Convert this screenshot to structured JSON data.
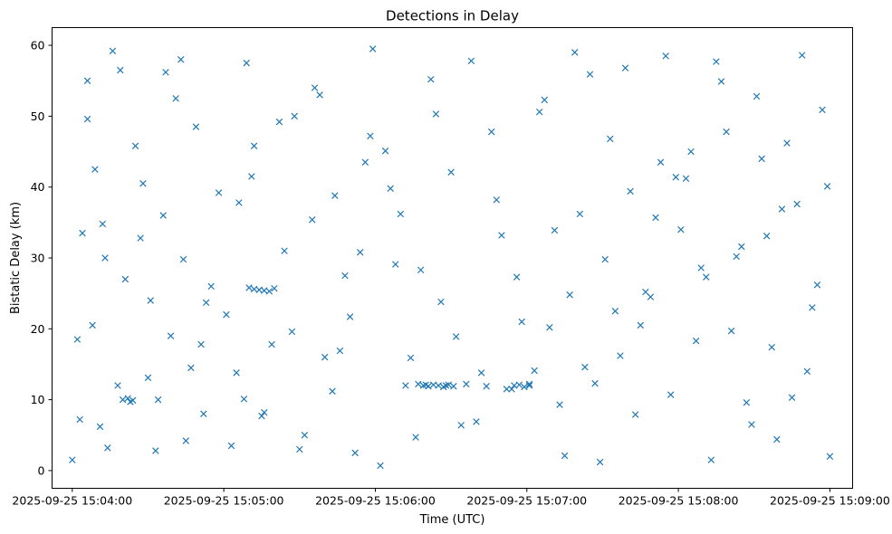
{
  "chart_data": {
    "type": "scatter",
    "title": "Detections in Delay",
    "xlabel": "Time (UTC)",
    "ylabel": "Bistatic Delay (km)",
    "marker": "x",
    "color": "#1f77b4",
    "grid": false,
    "legend": "none",
    "xlim": [
      "2025-09-25 15:03:52",
      "2025-09-25 15:09:09"
    ],
    "ylim": [
      -2.5,
      62.5
    ],
    "xticks": [
      "2025-09-25 15:04:00",
      "2025-09-25 15:05:00",
      "2025-09-25 15:06:00",
      "2025-09-25 15:07:00",
      "2025-09-25 15:08:00",
      "2025-09-25 15:09:00"
    ],
    "yticks": [
      0,
      10,
      20,
      30,
      40,
      50,
      60
    ],
    "series": [
      {
        "x": [
          "15:04:00",
          "15:04:02",
          "15:04:04",
          "15:04:06",
          "15:04:09",
          "15:04:11",
          "15:04:13",
          "15:04:16",
          "15:04:18",
          "15:04:21",
          "15:04:23",
          "15:04:25",
          "15:04:28",
          "15:04:31",
          "15:04:33",
          "15:04:36",
          "15:04:39",
          "15:04:41",
          "15:04:44",
          "15:04:47",
          "15:04:49",
          "15:04:52",
          "15:04:55",
          "15:04:58",
          "15:04:03",
          "15:04:08",
          "15:04:14",
          "15:04:19",
          "15:04:27",
          "15:04:34",
          "15:04:43",
          "15:04:51",
          "15:05:01",
          "15:05:05",
          "15:05:09",
          "15:05:12",
          "15:05:16",
          "15:05:20",
          "15:05:24",
          "15:05:28",
          "15:05:32",
          "15:05:36",
          "15:05:40",
          "15:05:44",
          "15:05:48",
          "15:05:52",
          "15:05:56",
          "15:05:59",
          "15:05:03",
          "15:05:11",
          "15:05:19",
          "15:05:27",
          "15:05:35",
          "15:05:43",
          "15:05:50",
          "15:05:58",
          "15:06:02",
          "15:06:06",
          "15:06:10",
          "15:06:14",
          "15:06:18",
          "15:06:22",
          "15:06:26",
          "15:06:30",
          "15:06:34",
          "15:06:38",
          "15:06:42",
          "15:06:46",
          "15:06:50",
          "15:06:54",
          "15:06:58",
          "15:06:12",
          "15:06:20",
          "15:06:28",
          "15:06:36",
          "15:06:44",
          "15:06:52",
          "15:07:01",
          "15:07:05",
          "15:07:09",
          "15:07:13",
          "15:07:17",
          "15:07:21",
          "15:07:25",
          "15:07:29",
          "15:07:33",
          "15:07:37",
          "15:07:41",
          "15:07:45",
          "15:07:49",
          "15:07:53",
          "15:07:57",
          "15:07:07",
          "15:07:15",
          "15:07:23",
          "15:07:31",
          "15:07:39",
          "15:07:47",
          "15:07:55",
          "15:08:01",
          "15:08:05",
          "15:08:09",
          "15:08:13",
          "15:08:17",
          "15:08:21",
          "15:08:25",
          "15:08:29",
          "15:08:33",
          "15:08:37",
          "15:08:41",
          "15:08:45",
          "15:08:49",
          "15:08:53",
          "15:08:57",
          "15:09:00",
          "15:08:03",
          "15:08:11",
          "15:08:19",
          "15:08:27",
          "15:08:35",
          "15:08:43",
          "15:08:51",
          "15:08:59",
          "15:05:10",
          "15:05:12",
          "15:05:14",
          "15:05:16",
          "15:05:18",
          "15:06:17",
          "15:06:19",
          "15:06:21",
          "15:06:23",
          "15:06:25",
          "15:06:27",
          "15:06:29",
          "15:06:31",
          "15:06:55",
          "15:06:57",
          "15:06:59",
          "15:07:01",
          "15:04:20",
          "15:04:22",
          "15:04:24",
          "15:05:08",
          "15:05:06",
          "15:05:15",
          "15:05:22",
          "15:05:30",
          "15:05:38",
          "15:05:46",
          "15:05:54",
          "15:06:04",
          "15:06:08",
          "15:06:16",
          "15:06:24",
          "15:06:32",
          "15:06:40",
          "15:06:48",
          "15:06:56",
          "15:07:03",
          "15:07:11",
          "15:07:19",
          "15:07:27",
          "15:07:35",
          "15:07:43",
          "15:07:51",
          "15:07:59",
          "15:08:07",
          "15:08:15",
          "15:08:23",
          "15:08:31",
          "15:08:39",
          "15:08:47",
          "15:08:55",
          "15:04:06",
          "15:04:12",
          "15:04:30",
          "15:04:37",
          "15:04:45",
          "15:04:53"
        ],
        "y": [
          1.5,
          18.5,
          33.5,
          55.0,
          42.5,
          6.2,
          30.0,
          59.2,
          12.0,
          27.0,
          9.7,
          45.8,
          40.5,
          24.0,
          2.8,
          36.0,
          19.0,
          52.5,
          29.8,
          14.5,
          48.5,
          8.0,
          26.0,
          39.2,
          7.2,
          20.5,
          3.2,
          56.5,
          32.8,
          10.0,
          58.0,
          17.8,
          22.0,
          13.8,
          57.5,
          45.8,
          8.2,
          25.7,
          31.0,
          50.0,
          5.0,
          54.0,
          16.0,
          38.8,
          27.5,
          2.5,
          43.5,
          59.5,
          3.5,
          41.5,
          17.8,
          19.6,
          35.4,
          11.2,
          21.7,
          47.2,
          0.7,
          39.8,
          36.2,
          15.9,
          28.3,
          55.2,
          23.8,
          42.1,
          6.4,
          57.8,
          13.8,
          47.8,
          33.2,
          11.5,
          21.0,
          12.0,
          12.1,
          12.0,
          12.2,
          11.9,
          11.5,
          12.0,
          50.6,
          20.2,
          9.3,
          24.8,
          36.2,
          55.9,
          1.2,
          46.8,
          16.2,
          39.4,
          20.5,
          24.5,
          43.5,
          10.7,
          52.3,
          2.1,
          14.6,
          29.8,
          56.8,
          25.2,
          58.5,
          34.0,
          45.0,
          28.6,
          1.5,
          54.9,
          19.7,
          31.6,
          6.5,
          44.0,
          17.4,
          36.9,
          10.3,
          58.6,
          23.0,
          50.9,
          2.0,
          41.2,
          27.3,
          47.8,
          9.6,
          33.1,
          46.2,
          14.0,
          40.1,
          25.8,
          25.6,
          25.5,
          25.4,
          25.3,
          12.2,
          12.0,
          11.9,
          12.1,
          12.0,
          11.8,
          12.1,
          11.9,
          12.0,
          12.1,
          11.8,
          12.2,
          10.0,
          10.2,
          9.9,
          10.1,
          37.8,
          7.7,
          49.2,
          3.0,
          53.0,
          16.9,
          30.8,
          45.1,
          29.1,
          4.7,
          50.3,
          18.9,
          6.9,
          38.2,
          27.3,
          14.1,
          33.9,
          59.0,
          12.3,
          22.5,
          7.9,
          35.7,
          41.4,
          18.3,
          57.7,
          30.2,
          52.8,
          4.4,
          37.6,
          26.2,
          49.6,
          34.8,
          13.1,
          56.2,
          4.2,
          23.7
        ]
      }
    ]
  }
}
